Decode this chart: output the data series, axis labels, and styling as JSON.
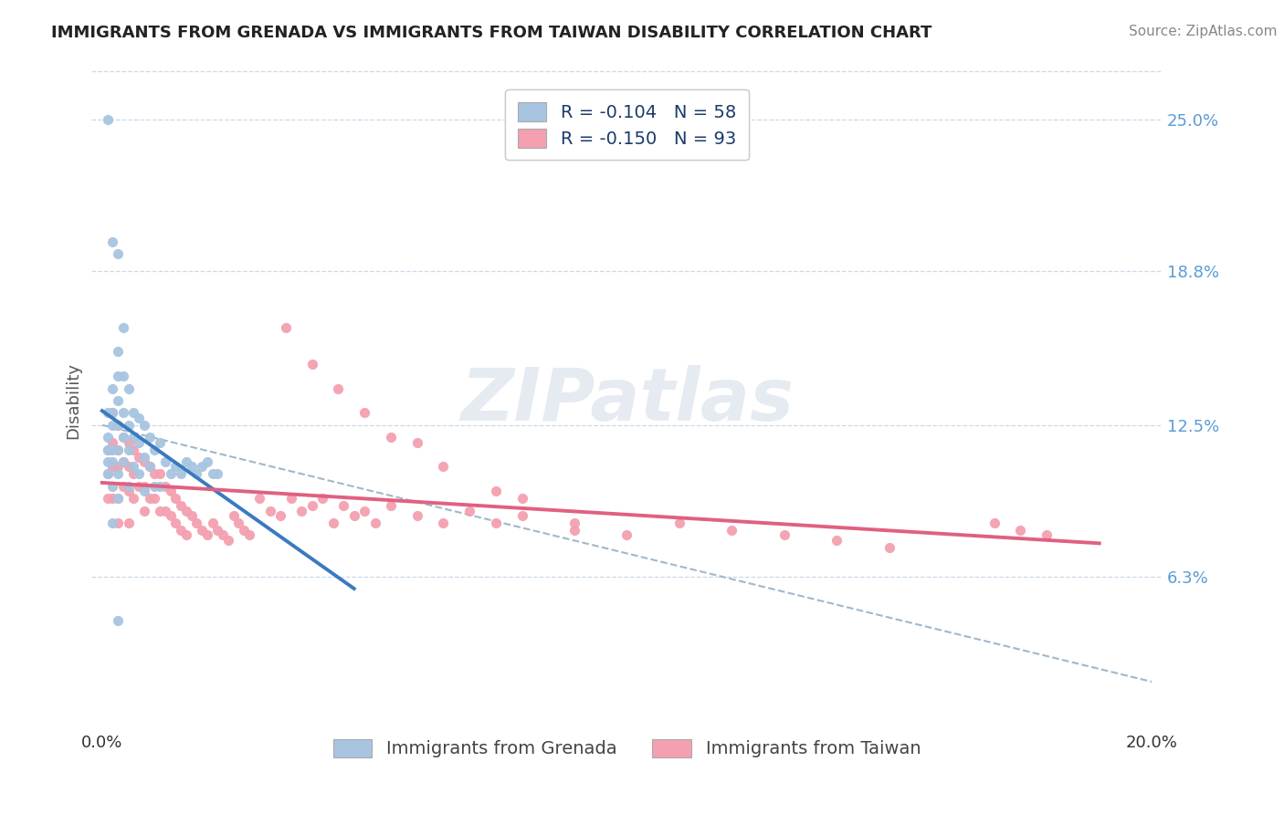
{
  "title": "IMMIGRANTS FROM GRENADA VS IMMIGRANTS FROM TAIWAN DISABILITY CORRELATION CHART",
  "source": "Source: ZipAtlas.com",
  "ylabel": "Disability",
  "xlim": [
    -0.002,
    0.202
  ],
  "ylim": [
    0.0,
    0.27
  ],
  "xtick_positions": [
    0.0,
    0.05,
    0.1,
    0.15,
    0.2
  ],
  "xticklabels": [
    "0.0%",
    "",
    "",
    "",
    "20.0%"
  ],
  "ytick_positions": [
    0.063,
    0.125,
    0.188,
    0.25
  ],
  "ytick_labels": [
    "6.3%",
    "12.5%",
    "18.8%",
    "25.0%"
  ],
  "grenada_dot_color": "#a8c4e0",
  "taiwan_dot_color": "#f4a0b0",
  "grenada_line_color": "#3a7abf",
  "taiwan_line_color": "#e06080",
  "dashed_line_color": "#a0b8cc",
  "grid_color": "#c8daea",
  "legend_R_grenada": "R = -0.104",
  "legend_N_grenada": "N = 58",
  "legend_R_taiwan": "R = -0.150",
  "legend_N_taiwan": "N = 93",
  "watermark_text": "ZIPatlas",
  "grenada_x": [
    0.001,
    0.001,
    0.001,
    0.001,
    0.001,
    0.002,
    0.002,
    0.002,
    0.002,
    0.002,
    0.002,
    0.003,
    0.003,
    0.003,
    0.003,
    0.003,
    0.003,
    0.003,
    0.004,
    0.004,
    0.004,
    0.004,
    0.005,
    0.005,
    0.005,
    0.005,
    0.006,
    0.006,
    0.006,
    0.007,
    0.007,
    0.007,
    0.008,
    0.008,
    0.008,
    0.009,
    0.009,
    0.01,
    0.01,
    0.011,
    0.011,
    0.012,
    0.013,
    0.014,
    0.015,
    0.016,
    0.017,
    0.018,
    0.019,
    0.02,
    0.021,
    0.022,
    0.002,
    0.003,
    0.004,
    0.001,
    0.002,
    0.003
  ],
  "grenada_y": [
    0.13,
    0.12,
    0.115,
    0.11,
    0.105,
    0.14,
    0.13,
    0.125,
    0.115,
    0.11,
    0.1,
    0.155,
    0.145,
    0.135,
    0.125,
    0.115,
    0.105,
    0.095,
    0.145,
    0.13,
    0.12,
    0.11,
    0.14,
    0.125,
    0.115,
    0.1,
    0.13,
    0.12,
    0.108,
    0.128,
    0.118,
    0.105,
    0.125,
    0.112,
    0.098,
    0.12,
    0.108,
    0.115,
    0.1,
    0.118,
    0.1,
    0.11,
    0.105,
    0.108,
    0.105,
    0.11,
    0.108,
    0.105,
    0.108,
    0.11,
    0.105,
    0.105,
    0.2,
    0.195,
    0.165,
    0.25,
    0.085,
    0.045
  ],
  "taiwan_x": [
    0.001,
    0.001,
    0.001,
    0.002,
    0.002,
    0.002,
    0.002,
    0.003,
    0.003,
    0.003,
    0.003,
    0.003,
    0.004,
    0.004,
    0.004,
    0.005,
    0.005,
    0.005,
    0.005,
    0.006,
    0.006,
    0.006,
    0.007,
    0.007,
    0.008,
    0.008,
    0.008,
    0.009,
    0.009,
    0.01,
    0.01,
    0.011,
    0.011,
    0.012,
    0.012,
    0.013,
    0.013,
    0.014,
    0.014,
    0.015,
    0.015,
    0.016,
    0.016,
    0.017,
    0.018,
    0.019,
    0.02,
    0.021,
    0.022,
    0.023,
    0.024,
    0.025,
    0.026,
    0.027,
    0.028,
    0.03,
    0.032,
    0.034,
    0.036,
    0.038,
    0.04,
    0.042,
    0.044,
    0.046,
    0.048,
    0.05,
    0.052,
    0.055,
    0.06,
    0.065,
    0.07,
    0.075,
    0.08,
    0.09,
    0.1,
    0.11,
    0.12,
    0.13,
    0.14,
    0.15,
    0.035,
    0.04,
    0.045,
    0.05,
    0.055,
    0.06,
    0.065,
    0.075,
    0.08,
    0.09,
    0.17,
    0.175,
    0.18
  ],
  "taiwan_y": [
    0.115,
    0.105,
    0.095,
    0.13,
    0.118,
    0.108,
    0.095,
    0.125,
    0.115,
    0.108,
    0.095,
    0.085,
    0.12,
    0.11,
    0.1,
    0.118,
    0.108,
    0.098,
    0.085,
    0.115,
    0.105,
    0.095,
    0.112,
    0.1,
    0.11,
    0.1,
    0.09,
    0.108,
    0.095,
    0.105,
    0.095,
    0.105,
    0.09,
    0.1,
    0.09,
    0.098,
    0.088,
    0.095,
    0.085,
    0.092,
    0.082,
    0.09,
    0.08,
    0.088,
    0.085,
    0.082,
    0.08,
    0.085,
    0.082,
    0.08,
    0.078,
    0.088,
    0.085,
    0.082,
    0.08,
    0.095,
    0.09,
    0.088,
    0.095,
    0.09,
    0.092,
    0.095,
    0.085,
    0.092,
    0.088,
    0.09,
    0.085,
    0.092,
    0.088,
    0.085,
    0.09,
    0.085,
    0.088,
    0.082,
    0.08,
    0.085,
    0.082,
    0.08,
    0.078,
    0.075,
    0.165,
    0.15,
    0.14,
    0.13,
    0.12,
    0.118,
    0.108,
    0.098,
    0.095,
    0.085,
    0.085,
    0.082,
    0.08
  ],
  "title_fontsize": 13,
  "source_fontsize": 11,
  "tick_fontsize": 13,
  "legend_fontsize": 14
}
